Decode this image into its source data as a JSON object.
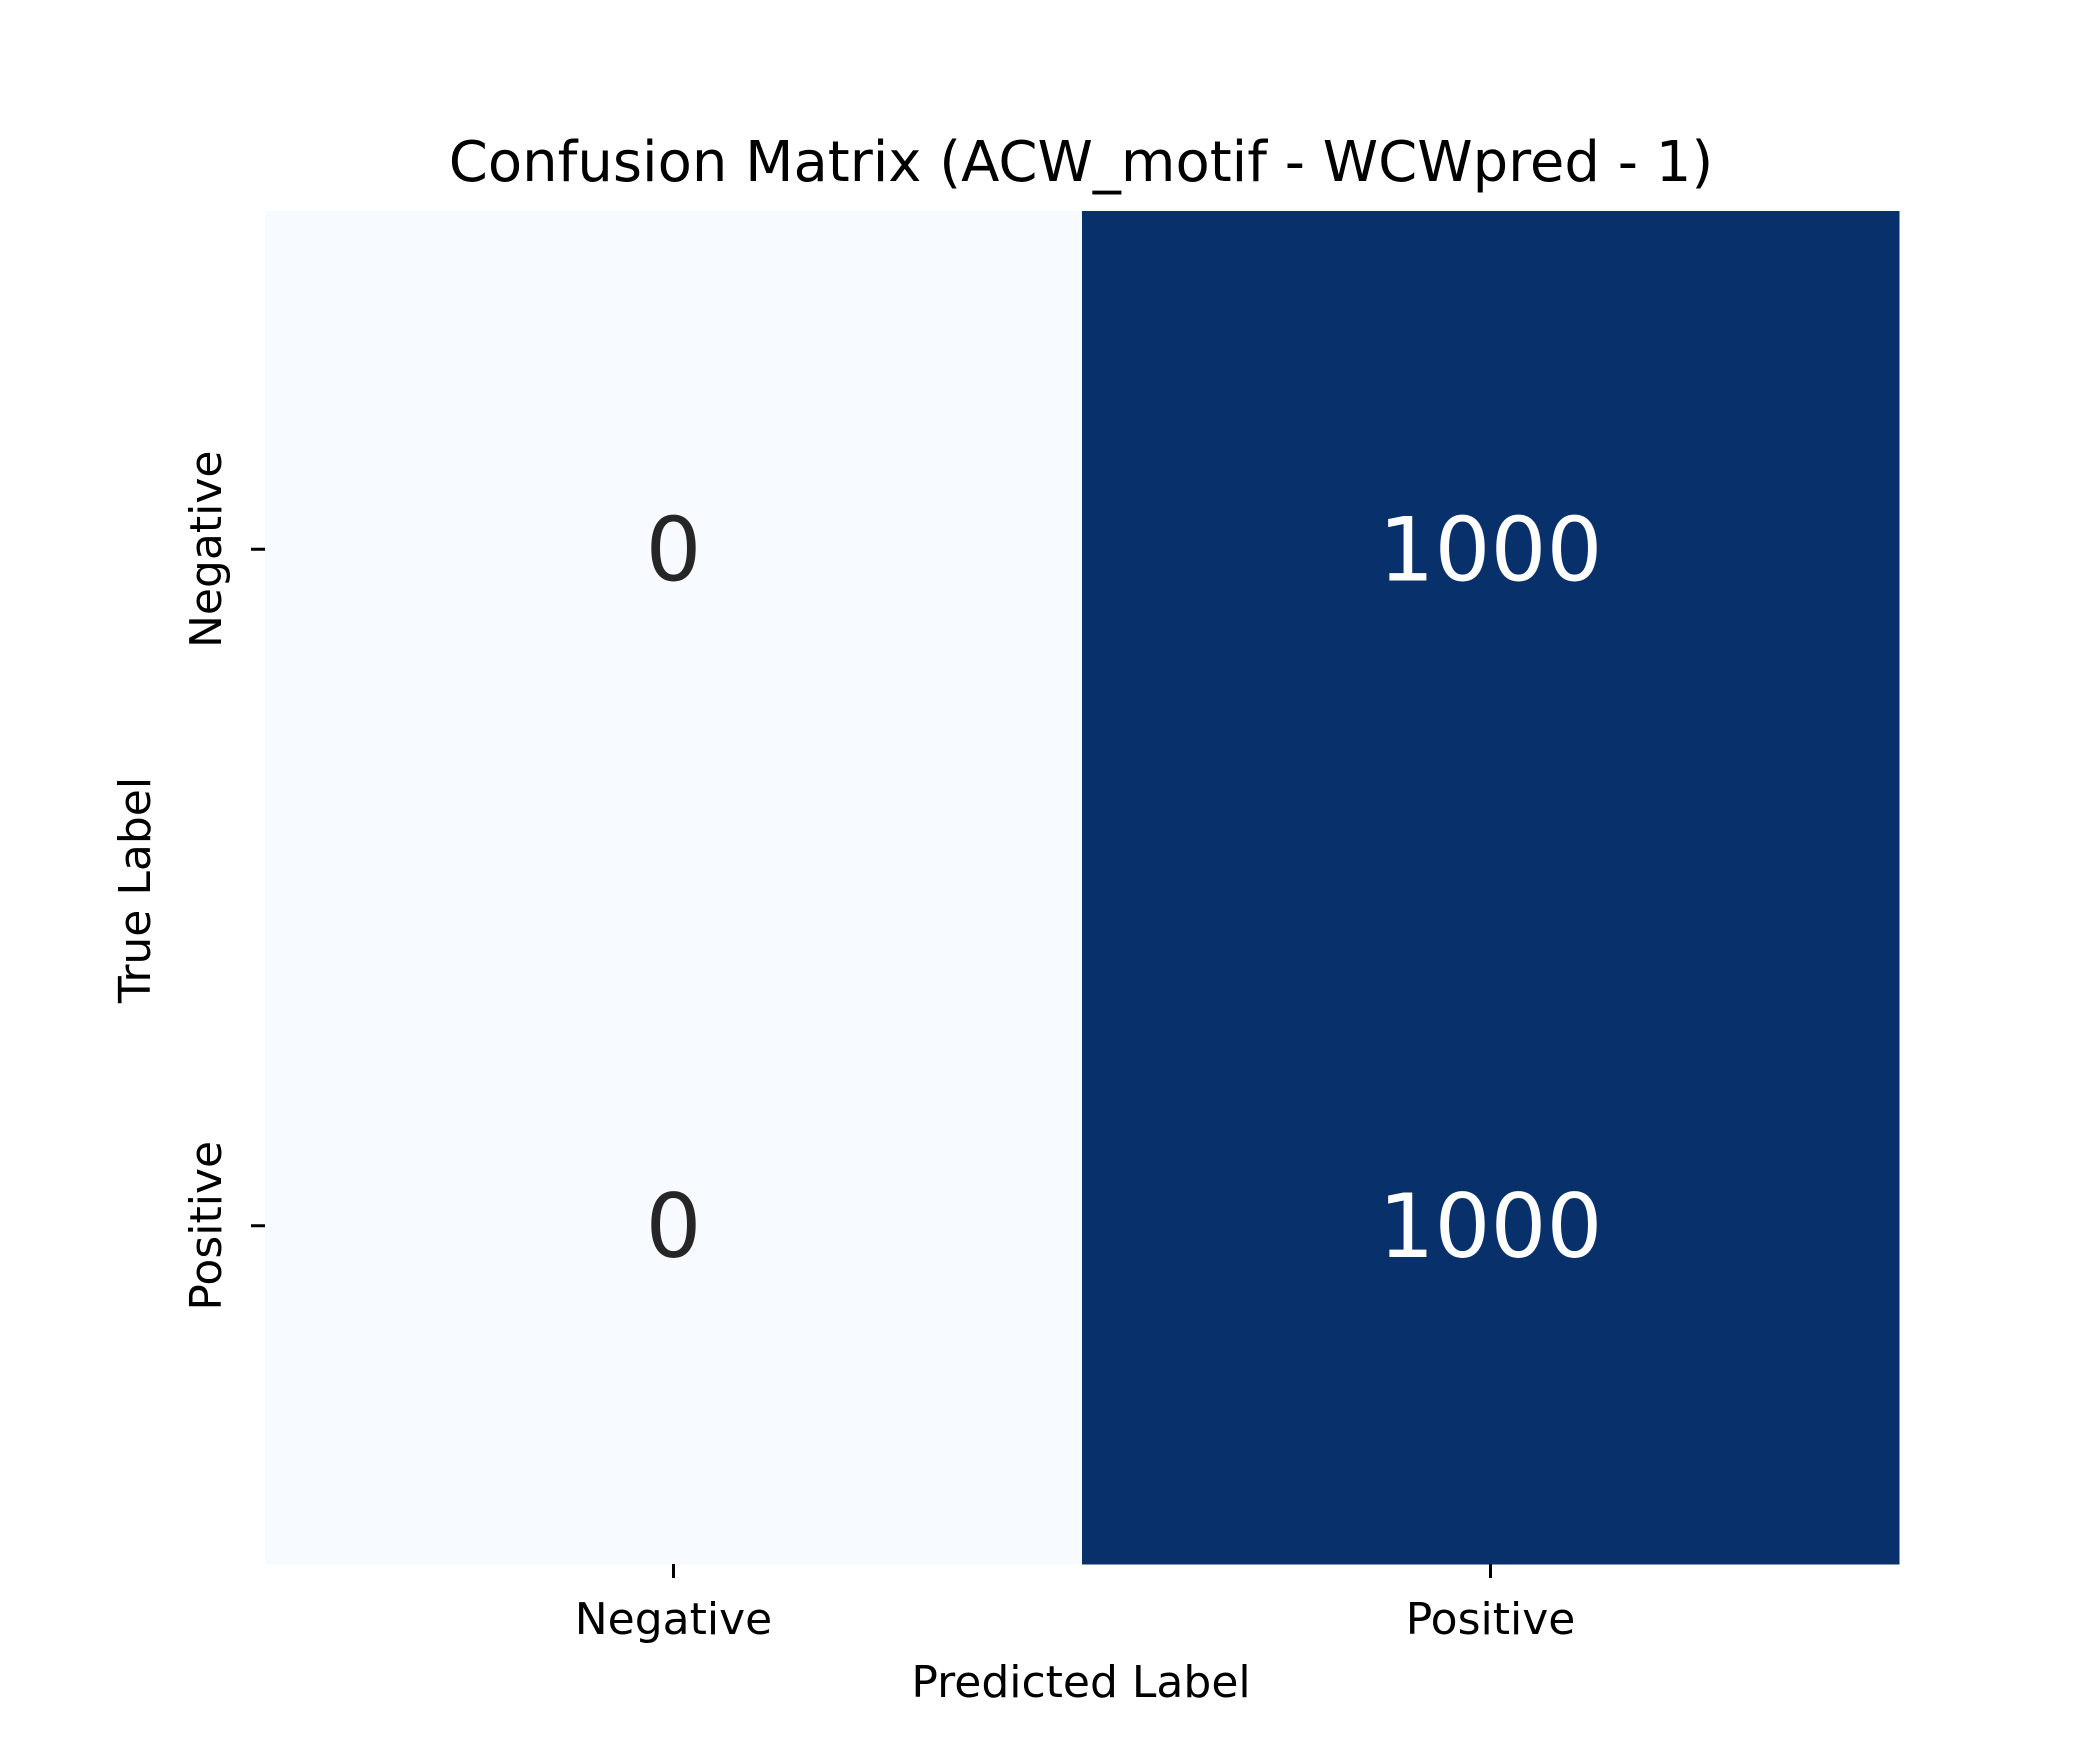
{
  "chart_data": {
    "type": "heatmap",
    "title": "Confusion Matrix (ACW_motif - WCWpred - 1)",
    "xlabel": "Predicted Label",
    "ylabel": "True Label",
    "x_categories": [
      "Negative",
      "Positive"
    ],
    "y_categories": [
      "Negative",
      "Positive"
    ],
    "values": [
      [
        0,
        1000
      ],
      [
        0,
        1000
      ]
    ],
    "value_range": [
      0,
      1000
    ],
    "colormap": "Blues",
    "color_low": "#f7fbff",
    "color_high": "#08306b",
    "text_color_dark": "#262626",
    "text_color_light": "#ffffff",
    "colorbar": false,
    "grid": false
  }
}
